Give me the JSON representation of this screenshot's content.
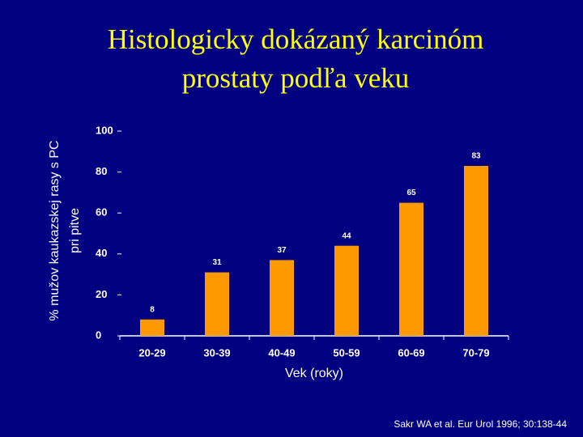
{
  "chart_data": {
    "type": "bar",
    "title": [
      "Histologicky dokázaný karcinóm",
      "prostaty podľa veku"
    ],
    "y_label": [
      "% mužov kaukazskej rasy s PC",
      "pri pitve"
    ],
    "x_label": "Vek (roky)",
    "categories": [
      "20-29",
      "30-39",
      "40-49",
      "50-59",
      "60-69",
      "70-79"
    ],
    "values": [
      8,
      31,
      37,
      44,
      65,
      83
    ],
    "color": "#ff9900",
    "ylim": [
      0,
      100
    ],
    "yticks": [
      0,
      20,
      40,
      60,
      80,
      100
    ],
    "source": "Sakr WA et al. Eur Urol 1996; 30:138-44"
  }
}
